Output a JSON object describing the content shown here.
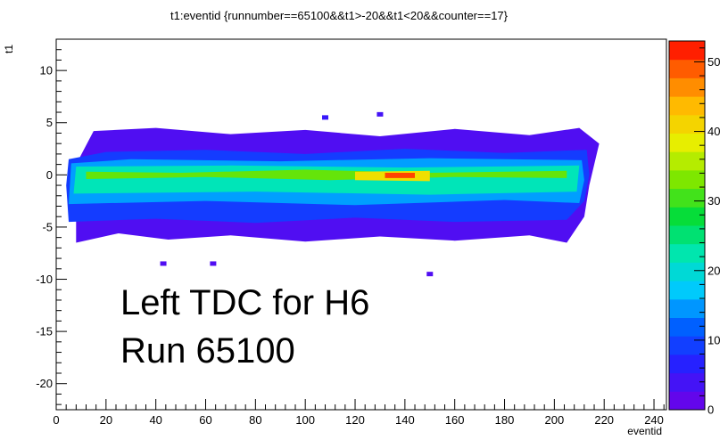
{
  "chart_data": {
    "type": "heatmap",
    "title": "t1:eventid {runnumber==65100&&t1>-20&&t1<20&&counter==17}",
    "xlabel": "eventid",
    "ylabel": "t1",
    "xlim": [
      0,
      245
    ],
    "ylim": [
      -22.5,
      13
    ],
    "x_ticks": [
      0,
      20,
      40,
      60,
      80,
      100,
      120,
      140,
      160,
      180,
      200,
      220,
      240
    ],
    "y_ticks": [
      -20,
      -15,
      -10,
      -5,
      0,
      5,
      10
    ],
    "colorbar": {
      "min": 0,
      "max": 53,
      "ticks": [
        0,
        10,
        20,
        30,
        40,
        50
      ]
    },
    "annotations": [
      "Left TDC for H6",
      "Run 65100"
    ],
    "regions": [
      {
        "name": "low-density envelope",
        "level": 3,
        "points": [
          [
            8,
            -6.5
          ],
          [
            25,
            -5.6
          ],
          [
            45,
            -6.2
          ],
          [
            70,
            -5.8
          ],
          [
            100,
            -6.4
          ],
          [
            130,
            -5.9
          ],
          [
            160,
            -6.3
          ],
          [
            190,
            -5.8
          ],
          [
            205,
            -6.5
          ],
          [
            212,
            -4
          ],
          [
            214,
            -1
          ],
          [
            218,
            3
          ],
          [
            210,
            4.5
          ],
          [
            190,
            3.8
          ],
          [
            160,
            4.4
          ],
          [
            130,
            3.7
          ],
          [
            100,
            4.3
          ],
          [
            70,
            3.9
          ],
          [
            40,
            4.5
          ],
          [
            15,
            4.2
          ],
          [
            8,
            1
          ]
        ]
      },
      {
        "name": "blue band",
        "level": 9,
        "points": [
          [
            5,
            -4.5
          ],
          [
            40,
            -4.2
          ],
          [
            80,
            -4.6
          ],
          [
            120,
            -4.1
          ],
          [
            160,
            -4.5
          ],
          [
            205,
            -4.3
          ],
          [
            212,
            -2.5
          ],
          [
            214,
            0
          ],
          [
            213,
            2.4
          ],
          [
            180,
            2.1
          ],
          [
            140,
            2.5
          ],
          [
            100,
            2
          ],
          [
            60,
            2.4
          ],
          [
            20,
            2.2
          ],
          [
            5,
            1.5
          ],
          [
            4,
            -1
          ]
        ]
      },
      {
        "name": "cyan band",
        "level": 15,
        "points": [
          [
            5,
            -2.8
          ],
          [
            60,
            -2.5
          ],
          [
            120,
            -2.9
          ],
          [
            180,
            -2.4
          ],
          [
            210,
            -2.7
          ],
          [
            212,
            -0.5
          ],
          [
            211,
            1.4
          ],
          [
            150,
            1.6
          ],
          [
            90,
            1.3
          ],
          [
            30,
            1.5
          ],
          [
            6,
            1.1
          ]
        ]
      },
      {
        "name": "green band",
        "level": 22,
        "points": [
          [
            7,
            -1.8
          ],
          [
            80,
            -1.6
          ],
          [
            150,
            -1.9
          ],
          [
            209,
            -1.6
          ],
          [
            210,
            0.9
          ],
          [
            140,
            0.7
          ],
          [
            70,
            0.9
          ],
          [
            8,
            0.8
          ]
        ]
      },
      {
        "name": "yellow-green streak",
        "level": 32,
        "points": [
          [
            12,
            -0.4
          ],
          [
            60,
            -0.2
          ],
          [
            110,
            -0.5
          ],
          [
            160,
            -0.2
          ],
          [
            205,
            -0.3
          ],
          [
            205,
            0.4
          ],
          [
            150,
            0.2
          ],
          [
            100,
            0.5
          ],
          [
            50,
            0.2
          ],
          [
            12,
            0.3
          ]
        ]
      },
      {
        "name": "core hotspot",
        "level": 40,
        "points": [
          [
            120,
            -0.5
          ],
          [
            150,
            -0.6
          ],
          [
            150,
            0.4
          ],
          [
            120,
            0.3
          ]
        ]
      },
      {
        "name": "peak",
        "level": 50,
        "points": [
          [
            132,
            -0.3
          ],
          [
            144,
            -0.3
          ],
          [
            144,
            0.2
          ],
          [
            132,
            0.2
          ]
        ]
      }
    ],
    "isolated_cells": [
      {
        "x": 43,
        "y": -8.5,
        "level": 3
      },
      {
        "x": 63,
        "y": -8.5,
        "level": 3
      },
      {
        "x": 150,
        "y": -9.5,
        "level": 3
      },
      {
        "x": 108,
        "y": 5.5,
        "level": 5
      },
      {
        "x": 130,
        "y": 5.8,
        "level": 4
      }
    ]
  }
}
